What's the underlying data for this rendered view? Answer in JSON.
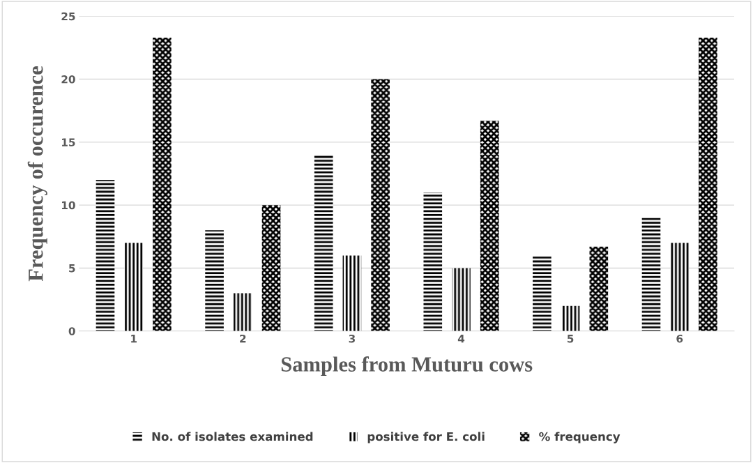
{
  "chart_data": {
    "type": "bar",
    "xlabel": "Samples from Muturu cows",
    "ylabel": "Frequency of occurence",
    "categories": [
      "1",
      "2",
      "3",
      "4",
      "5",
      "6"
    ],
    "series": [
      {
        "name": "No. of isolates examined",
        "color": "#000000",
        "values": [
          12,
          8,
          14,
          11,
          6,
          9
        ]
      },
      {
        "name": "positive for E. coli",
        "color": "#000000",
        "values": [
          7,
          3,
          6,
          5,
          2,
          7
        ]
      },
      {
        "name": "% frequency",
        "color": "#000000",
        "values": [
          23.3,
          10,
          20,
          16.7,
          6.7,
          23.3
        ]
      }
    ],
    "ylim": [
      0,
      25
    ],
    "yticks": [
      0,
      5,
      10,
      15,
      20,
      25
    ],
    "grid": "y",
    "legend": "bottom"
  }
}
